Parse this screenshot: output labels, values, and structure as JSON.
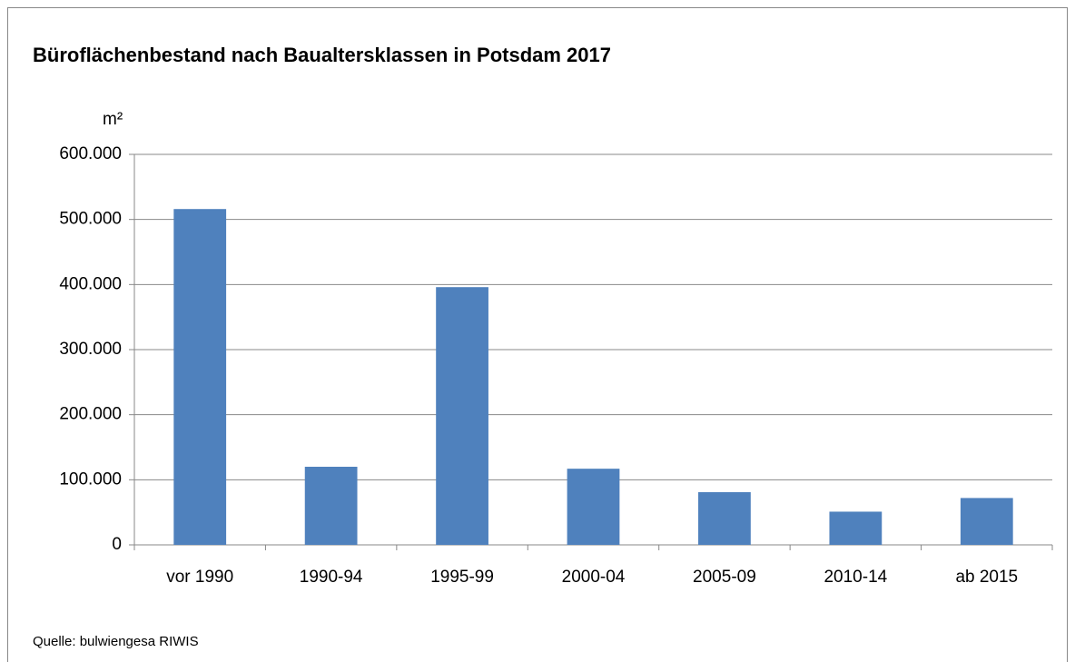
{
  "chart_data": {
    "type": "bar",
    "title": "Büroflächenbestand nach Baualtersklassen in Potsdam 2017",
    "y_label": "m²",
    "source": "Quelle: bulwiengesa RIWIS",
    "categories": [
      "vor 1990",
      "1990-94",
      "1995-99",
      "2000-04",
      "2005-09",
      "2010-14",
      "ab 2015"
    ],
    "values": [
      516000,
      120000,
      396000,
      117000,
      81000,
      51000,
      72000
    ],
    "color": "#4f81bd",
    "ylim": [
      0,
      600000
    ],
    "yticks": [
      0,
      {
        "value": 100000,
        "label": "100.000"
      },
      {
        "value": 200000,
        "label": "200.000"
      },
      {
        "value": 300000,
        "label": "300.000"
      },
      {
        "value": 400000,
        "label": "400.000"
      },
      {
        "value": 500000,
        "label": "500.000"
      },
      {
        "value": 600000,
        "label": "600.000"
      }
    ],
    "grid": true
  }
}
